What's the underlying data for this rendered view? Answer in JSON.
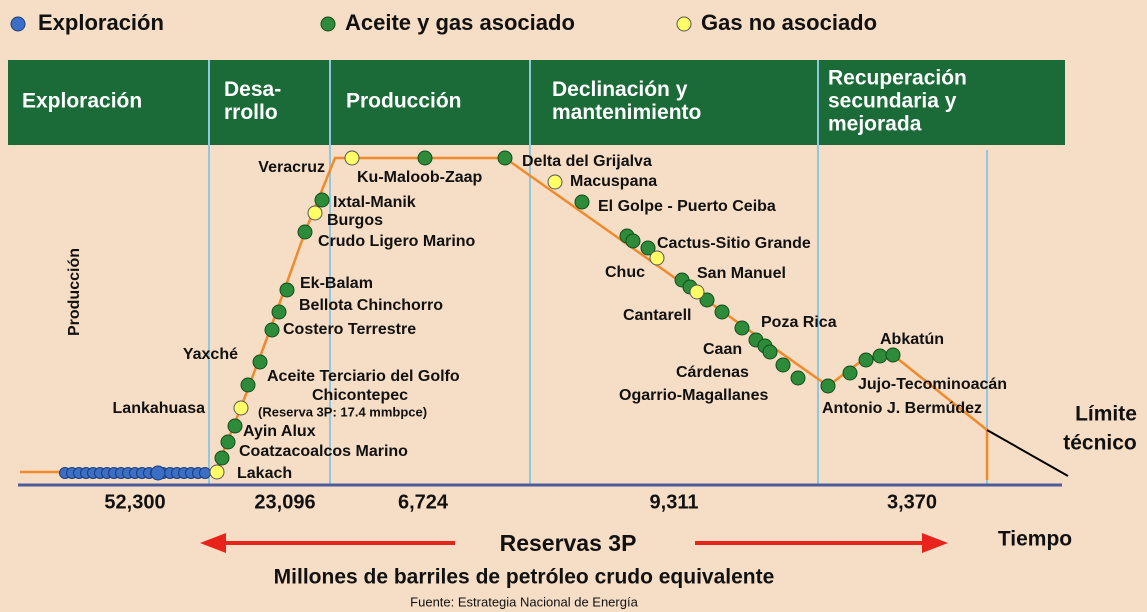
{
  "legend": [
    "Exploración",
    "Aceite y gas asociado",
    "Gas no asociado"
  ],
  "phases": [
    [
      "Exploración"
    ],
    [
      "Desa-",
      "rrollo"
    ],
    [
      "Producción"
    ],
    [
      "Declinación y",
      "mantenimiento"
    ],
    [
      "Recuperación",
      "secundaria y",
      "mejorada"
    ]
  ],
  "fields": [
    "Veracruz",
    "Ku-Maloob-Zaap",
    "Delta del Grijalva",
    "Macuspana",
    "El Golpe - Puerto Ceiba",
    "Cactus-Sitio Grande",
    "Chuc",
    "San Manuel",
    "Cantarell",
    "Poza Rica",
    "Caan",
    "Cárdenas",
    "Ogarrio-Magallanes",
    "Abkatún",
    "Jujo-Tecominoacán",
    "Antonio J. Bermúdez",
    "Ixtal-Manik",
    "Burgos",
    "Crudo Ligero Marino",
    "Ek-Balam",
    "Bellota Chinchorro",
    "Costero Terrestre",
    "Yaxché",
    "Aceite Terciario del Golfo",
    "Chicontepec",
    "(Reserva 3P: 17.4 mmbpce)",
    "Lankahuasa",
    "Ayin Alux",
    "Coatzacoalcos Marino",
    "Lakach"
  ],
  "reserves": [
    "52,300",
    "23,096",
    "6,724",
    "9,311",
    "3,370"
  ],
  "y_label": "Producción",
  "x_label": "Tiempo",
  "reserves_label": "Reservas 3P",
  "units_label": "Millones de barriles de petróleo crudo equivalente",
  "limit_label": [
    "Límite",
    "técnico"
  ],
  "source": "Fuente: Estrategia Nacional de Energía"
}
